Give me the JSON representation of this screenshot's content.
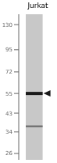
{
  "chart_data": {
    "type": "gel",
    "title": "Jurkat",
    "values": [
      55,
      36.5
    ],
    "colors": [
      "#1a1a1a",
      "#666666"
    ],
    "color": "#c8c8c8",
    "ylim": [
      24,
      148
    ],
    "yticks": [
      130,
      95,
      72,
      55,
      43,
      34,
      26
    ],
    "log": "y",
    "grid": false,
    "tick_labels": "y",
    "marker": "triangle"
  }
}
